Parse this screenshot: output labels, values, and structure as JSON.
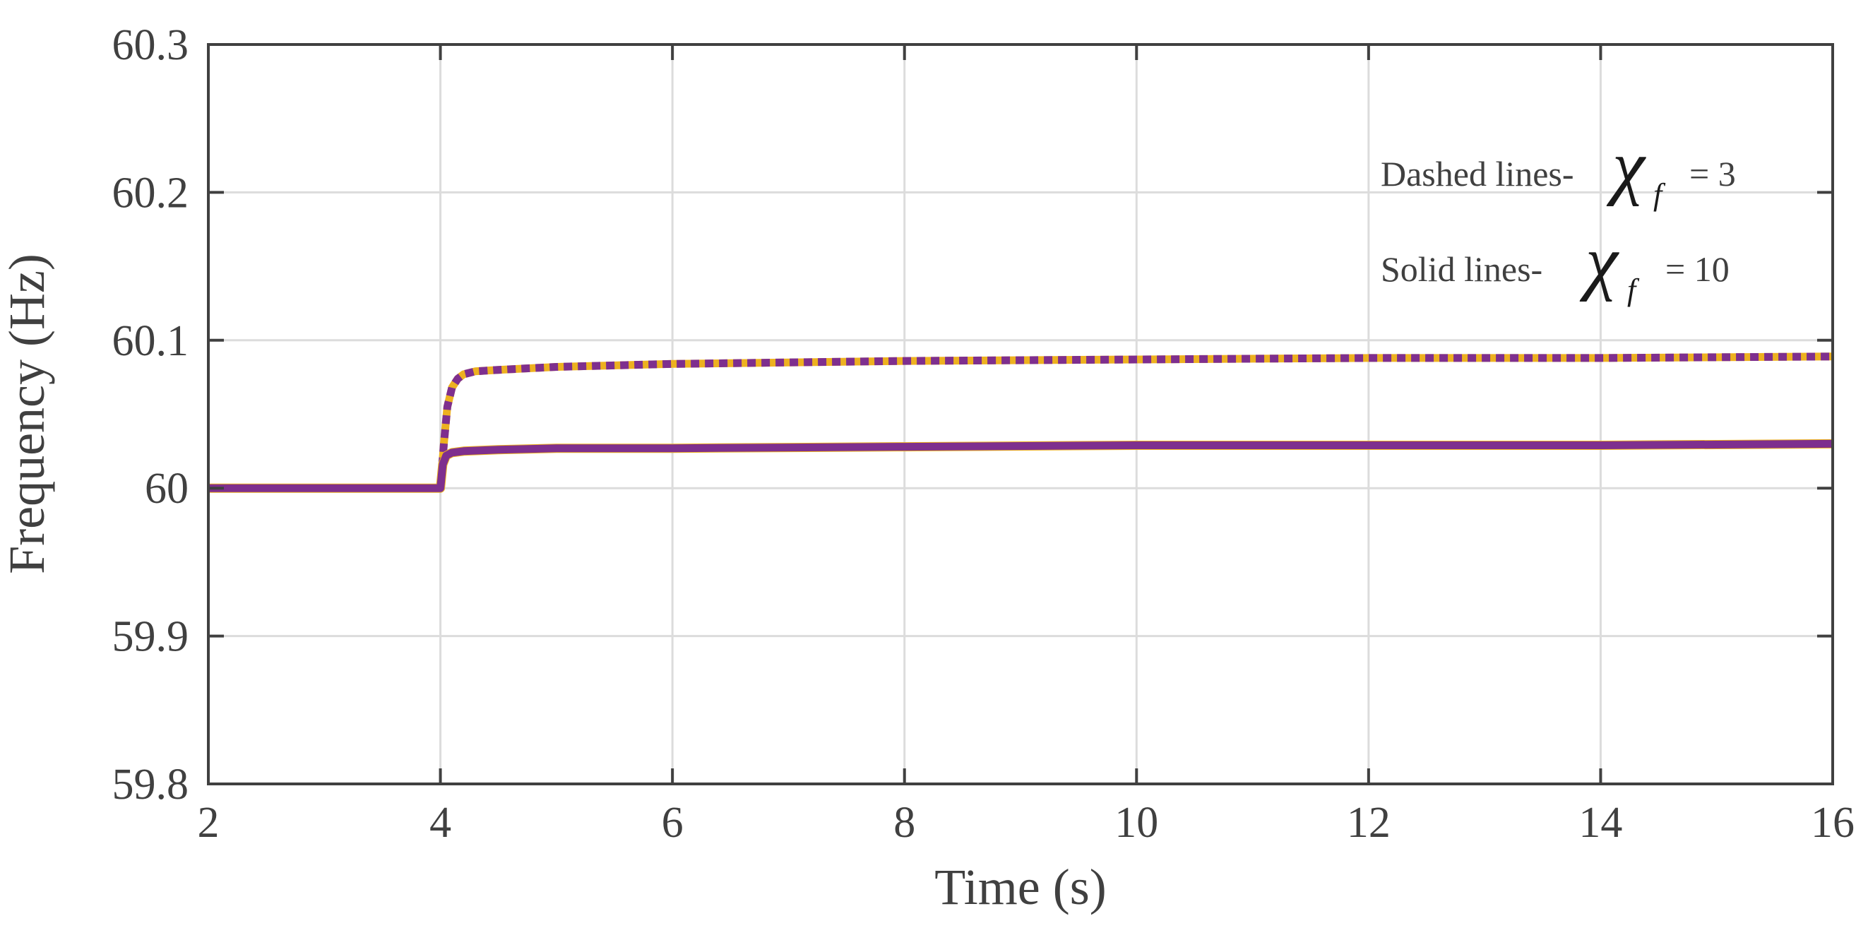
{
  "chart_data": {
    "type": "line",
    "title": "",
    "xlabel": "Time (s)",
    "ylabel": "Frequency (Hz)",
    "xlim": [
      2,
      16
    ],
    "ylim": [
      59.8,
      60.3
    ],
    "xticks": [
      2,
      4,
      6,
      8,
      10,
      12,
      14,
      16
    ],
    "yticks": [
      59.8,
      59.9,
      60,
      60.1,
      60.2,
      60.3
    ],
    "xtick_labels": [
      "2",
      "4",
      "6",
      "8",
      "10",
      "12",
      "14",
      "16"
    ],
    "ytick_labels": [
      "59.8",
      "59.9",
      "60",
      "60.1",
      "60.2",
      "60.3"
    ],
    "grid": true,
    "annotations": [
      {
        "prefix": "Dashed lines-",
        "symbol": "χ",
        "subscript": "f",
        "suffix": "= 3"
      },
      {
        "prefix": "Solid lines-",
        "symbol": "χ",
        "subscript": "f",
        "suffix": "= 10"
      }
    ],
    "series": [
      {
        "style": "dashed",
        "colors": [
          "#7E2F8E",
          "#EDB120"
        ],
        "x": [
          2,
          3.99,
          4.0,
          4.03,
          4.06,
          4.1,
          4.15,
          4.2,
          4.3,
          4.5,
          5,
          6,
          7,
          8,
          10,
          12,
          14,
          16
        ],
        "y": [
          60.0,
          60.0,
          60.0,
          60.03,
          60.055,
          60.068,
          60.074,
          60.077,
          60.079,
          60.08,
          60.082,
          60.084,
          60.085,
          60.086,
          60.087,
          60.088,
          60.088,
          60.089
        ]
      },
      {
        "style": "solid",
        "colors": [
          "#7E2F8E",
          "#EDB120"
        ],
        "x": [
          2,
          3.99,
          4.0,
          4.02,
          4.05,
          4.1,
          4.2,
          4.5,
          5,
          6,
          8,
          10,
          12,
          14,
          16
        ],
        "y": [
          60.0,
          60.0,
          60.0,
          60.016,
          60.022,
          60.024,
          60.025,
          60.026,
          60.027,
          60.027,
          60.028,
          60.029,
          60.029,
          60.029,
          60.03
        ]
      }
    ]
  }
}
